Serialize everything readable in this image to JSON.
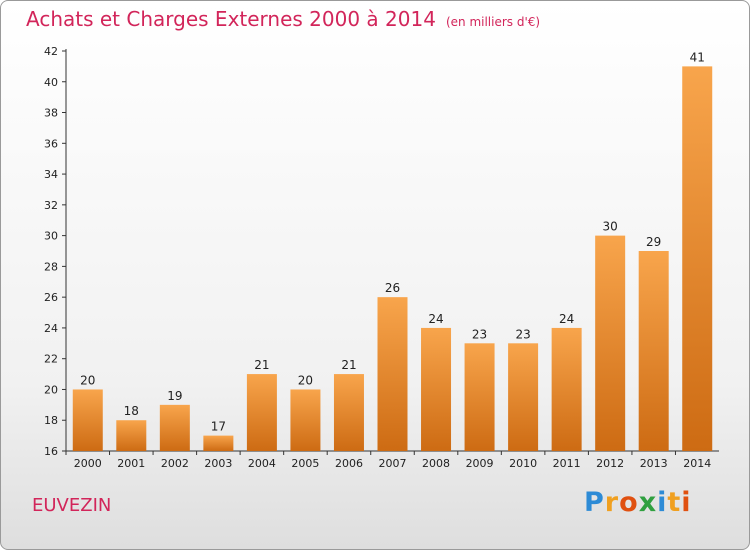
{
  "title": "Achats et Charges Externes 2000 à 2014",
  "unit_label": "(en milliers d'€)",
  "commune": "EUVEZIN",
  "logo": {
    "letters": [
      "P",
      "r",
      "o",
      "x",
      "i",
      "t",
      "i"
    ],
    "colors": [
      "#2d8bd6",
      "#f0a020",
      "#e05010",
      "#30a040",
      "#2d8bd6",
      "#f0a020",
      "#e05010"
    ]
  },
  "colors": {
    "title": "#d2255a",
    "bar_light": "#f8a54c",
    "bar_dark": "#cd6b13"
  },
  "chart_data": {
    "type": "bar",
    "title": "Achats et Charges Externes 2000 à 2014",
    "subtitle": "(en milliers d'€)",
    "categories": [
      "2000",
      "2001",
      "2002",
      "2003",
      "2004",
      "2005",
      "2006",
      "2007",
      "2008",
      "2009",
      "2010",
      "2011",
      "2012",
      "2013",
      "2014"
    ],
    "values": [
      20,
      18,
      19,
      17,
      21,
      20,
      21,
      26,
      24,
      23,
      23,
      24,
      30,
      29,
      41
    ],
    "ylim": [
      16,
      42
    ],
    "yticks": [
      16,
      18,
      20,
      22,
      24,
      26,
      28,
      30,
      32,
      34,
      36,
      38,
      40,
      42
    ],
    "grid": false,
    "xlabel": "",
    "ylabel": ""
  }
}
